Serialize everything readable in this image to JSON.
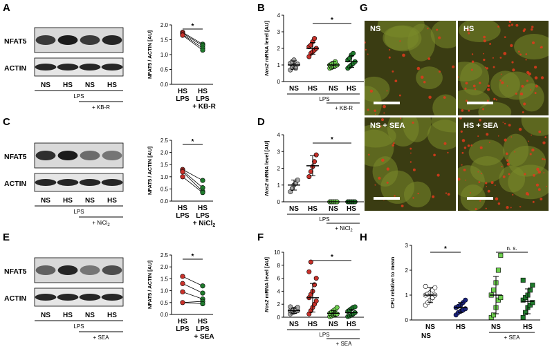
{
  "panel_letters": [
    "A",
    "B",
    "C",
    "D",
    "E",
    "F",
    "G",
    "H"
  ],
  "blots": [
    {
      "row": "A",
      "labels": [
        "NFAT5",
        "ACTIN"
      ],
      "lanes": [
        "NS",
        "HS",
        "NS",
        "HS"
      ],
      "lps": "LPS",
      "treat": "+ KB-R"
    },
    {
      "row": "C",
      "labels": [
        "NFAT5",
        "ACTIN"
      ],
      "lanes": [
        "NS",
        "HS",
        "NS",
        "HS"
      ],
      "lps": "LPS",
      "treat": "+ NiCl"
    },
    {
      "row": "E",
      "labels": [
        "NFAT5",
        "ACTIN"
      ],
      "lanes": [
        "NS",
        "HS",
        "NS",
        "HS"
      ],
      "lps": "LPS",
      "treat": "+ SEA"
    }
  ],
  "microscopy": {
    "tiles": [
      "NS",
      "HS",
      "NS + SEA",
      "HS + SEA"
    ],
    "colors": {
      "background": "#3a3c12",
      "cells": "#7a8a2a",
      "signal": "#e23a1c"
    }
  },
  "colors": {
    "gray": "#a6a6a6",
    "red": "#c8312a",
    "lightgreen": "#6ecf4f",
    "green": "#1f7a2c",
    "navy": "#1a237e",
    "white": "#ffffff"
  },
  "chart_data": [
    {
      "panel": "A",
      "type": "scatter",
      "ylabel": "NFAT5 / ACTIN [AU]",
      "ylim": [
        0,
        2.0
      ],
      "yticks": [
        "0.0",
        "0.5",
        "1.0",
        "1.5",
        "2.0"
      ],
      "categories": [
        "HS LPS",
        "HS LPS + KB-R"
      ],
      "series": [
        {
          "values": [
            1.75,
            1.72,
            1.68,
            1.65
          ]
        },
        {
          "values": [
            1.35,
            1.3,
            1.22,
            1.15
          ]
        }
      ],
      "significance": "*"
    },
    {
      "panel": "C",
      "type": "scatter",
      "ylabel": "NFAT5 / ACTIN [AU]",
      "ylim": [
        0,
        2.5
      ],
      "yticks": [
        "0.0",
        "0.5",
        "1.0",
        "1.5",
        "2.0",
        "2.5"
      ],
      "categories": [
        "HS LPS",
        "HS LPS + NiCl2"
      ],
      "series": [
        {
          "values": [
            1.3,
            1.25,
            1.2,
            1.0
          ]
        },
        {
          "values": [
            0.85,
            0.55,
            0.4,
            0.35
          ]
        }
      ],
      "significance": "*"
    },
    {
      "panel": "E",
      "type": "scatter",
      "ylabel": "NFAT5 / ACTIN [AU]",
      "ylim": [
        0,
        2.5
      ],
      "yticks": [
        "0.0",
        "0.5",
        "1.0",
        "1.5",
        "2.0",
        "2.5"
      ],
      "categories": [
        "HS LPS",
        "HS LPS + SEA"
      ],
      "series": [
        {
          "values": [
            1.6,
            1.3,
            0.95,
            0.5
          ]
        },
        {
          "values": [
            1.2,
            0.9,
            0.65,
            0.55,
            0.45
          ]
        }
      ],
      "significance": "*"
    },
    {
      "panel": "B",
      "type": "scatter",
      "ylabel": "Nos2 mRNA level [AU]",
      "ylim": [
        0,
        4
      ],
      "yticks": [
        "0",
        "1",
        "2",
        "3",
        "4"
      ],
      "groups": [
        {
          "label": "NS",
          "color": "gray",
          "mean": 1.0,
          "sd": 0.25,
          "values": [
            0.7,
            0.85,
            0.95,
            1.0,
            1.05,
            1.1,
            1.2,
            1.3,
            0.8
          ]
        },
        {
          "label": "HS",
          "color": "red",
          "mean": 2.0,
          "sd": 0.35,
          "values": [
            1.5,
            1.7,
            1.8,
            1.9,
            2.0,
            2.1,
            2.2,
            2.4,
            2.6
          ]
        },
        {
          "label": "NS",
          "color": "lightgreen",
          "mean": 1.0,
          "sd": 0.2,
          "values": [
            0.8,
            0.85,
            0.9,
            0.95,
            1.0,
            1.0,
            1.05,
            1.1,
            1.2
          ]
        },
        {
          "label": "HS",
          "color": "green",
          "mean": 1.2,
          "sd": 0.35,
          "values": [
            0.8,
            0.9,
            1.0,
            1.1,
            1.2,
            1.3,
            1.4,
            1.6,
            1.7
          ]
        }
      ],
      "lps": "LPS",
      "treat": "+ KB-R",
      "significance": "*"
    },
    {
      "panel": "D",
      "type": "scatter",
      "ylabel": "Nos2 mRNA level [AU]",
      "ylim": [
        0,
        4
      ],
      "yticks": [
        "0",
        "1",
        "2",
        "3",
        "4"
      ],
      "groups": [
        {
          "label": "NS",
          "color": "gray",
          "mean": 1.0,
          "sd": 0.3,
          "values": [
            0.6,
            0.8,
            1.0,
            1.1,
            1.3
          ]
        },
        {
          "label": "HS",
          "color": "red",
          "mean": 2.15,
          "sd": 0.6,
          "values": [
            1.5,
            1.8,
            2.1,
            2.4,
            2.8
          ]
        },
        {
          "label": "NS",
          "color": "lightgreen",
          "mean": 0.0,
          "sd": 0.0,
          "values": [
            0,
            0,
            0,
            0,
            0
          ]
        },
        {
          "label": "HS",
          "color": "green",
          "mean": 0.0,
          "sd": 0.0,
          "values": [
            0,
            0,
            0,
            0,
            0
          ]
        }
      ],
      "lps": "LPS",
      "treat": "+ NiCl",
      "significance": "*"
    },
    {
      "panel": "F",
      "type": "scatter",
      "ylabel": "Nos2 mRNA level [AU]",
      "ylim": [
        0,
        10
      ],
      "yticks": [
        "0",
        "2",
        "4",
        "6",
        "8",
        "10"
      ],
      "groups": [
        {
          "label": "NS",
          "color": "gray",
          "mean": 1.0,
          "sd": 0.4,
          "values": [
            0.5,
            0.7,
            0.8,
            0.9,
            1.0,
            1.0,
            1.1,
            1.2,
            1.3,
            1.5,
            1.6
          ]
        },
        {
          "label": "HS",
          "color": "red",
          "mean": 3.0,
          "sd": 2.2,
          "values": [
            0.5,
            1.0,
            1.5,
            2.0,
            2.5,
            3.0,
            3.5,
            4.0,
            5.0,
            6.0,
            7.0,
            8.5
          ]
        },
        {
          "label": "NS",
          "color": "lightgreen",
          "mean": 0.6,
          "sd": 0.4,
          "values": [
            0.1,
            0.2,
            0.3,
            0.4,
            0.5,
            0.6,
            0.8,
            1.0,
            1.2,
            1.5
          ]
        },
        {
          "label": "HS",
          "color": "green",
          "mean": 0.7,
          "sd": 0.5,
          "values": [
            0.1,
            0.2,
            0.3,
            0.5,
            0.7,
            0.9,
            1.1,
            1.3,
            1.5,
            1.6
          ]
        }
      ],
      "lps": "LPS",
      "treat": "+ SEA",
      "significance": "*"
    },
    {
      "panel": "H",
      "type": "scatter",
      "ylabel": "CFU relative to mean NS",
      "ylim": [
        0,
        3
      ],
      "yticks": [
        "0",
        "1",
        "2",
        "3"
      ],
      "groups": [
        {
          "label": "NS",
          "color": "white",
          "marker": "circle",
          "mean": 1.0,
          "sd": 0.3,
          "values": [
            0.6,
            0.7,
            0.8,
            0.9,
            1.0,
            1.0,
            1.05,
            1.1,
            1.2,
            1.3,
            1.35
          ]
        },
        {
          "label": "HS",
          "color": "navy",
          "marker": "circle",
          "mean": 0.5,
          "sd": 0.2,
          "values": [
            0.2,
            0.3,
            0.35,
            0.4,
            0.45,
            0.5,
            0.55,
            0.6,
            0.7,
            0.8
          ]
        },
        {
          "label": "NS",
          "color": "lightgreen",
          "marker": "square",
          "mean": 1.0,
          "sd": 0.75,
          "values": [
            0.1,
            0.2,
            0.5,
            0.8,
            0.9,
            1.0,
            1.2,
            1.5,
            2.0,
            2.6
          ]
        },
        {
          "label": "HS",
          "color": "green",
          "marker": "square",
          "mean": 0.75,
          "sd": 0.5,
          "values": [
            0.1,
            0.3,
            0.5,
            0.6,
            0.7,
            0.8,
            0.9,
            1.0,
            1.2,
            1.4,
            1.6
          ]
        }
      ],
      "treat": "+ SEA",
      "significance": [
        "*",
        "n. s."
      ]
    }
  ]
}
